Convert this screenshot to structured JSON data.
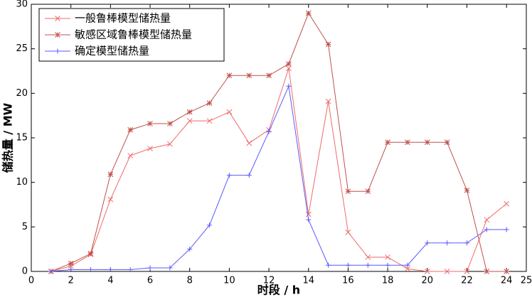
{
  "chart_data": {
    "type": "line",
    "x_label": "时段 / h",
    "y_label": "储热量 / MW",
    "x": [
      1,
      2,
      3,
      4,
      5,
      6,
      7,
      8,
      9,
      10,
      11,
      12,
      13,
      14,
      15,
      16,
      17,
      18,
      19,
      20,
      21,
      22,
      23,
      24
    ],
    "series": [
      {
        "name": "一般鲁棒模型储热量",
        "color": "#f06a6a",
        "marker": "x",
        "values": [
          0,
          0.6,
          1.9,
          8.1,
          13.0,
          13.8,
          14.3,
          16.9,
          16.9,
          17.9,
          14.4,
          15.9,
          22.8,
          6.4,
          19.1,
          4.4,
          1.6,
          1.6,
          0.3,
          0,
          0,
          0,
          5.8,
          7.6
        ]
      },
      {
        "name": "敏感区域鲁棒模型储热量",
        "color": "#c0504d",
        "marker": "star",
        "values": [
          0,
          0.9,
          2.0,
          10.9,
          15.9,
          16.6,
          16.6,
          17.9,
          18.9,
          22.0,
          22.0,
          22.0,
          23.3,
          29.0,
          25.5,
          9.0,
          9.0,
          14.5,
          14.5,
          14.5,
          14.5,
          9.1,
          0,
          0
        ]
      },
      {
        "name": "确定模型储热量",
        "color": "#5a5aff",
        "marker": "plus",
        "values": [
          0,
          0.2,
          0.2,
          0.2,
          0.2,
          0.4,
          0.4,
          2.5,
          5.2,
          10.8,
          10.8,
          15.7,
          20.8,
          5.8,
          0.7,
          0.7,
          0.7,
          0.7,
          0.7,
          3.2,
          3.2,
          3.2,
          4.7,
          4.7
        ]
      }
    ],
    "xlim": [
      0,
      25
    ],
    "xticks": [
      0,
      2,
      4,
      6,
      8,
      10,
      12,
      14,
      16,
      18,
      20,
      22,
      24,
      25
    ],
    "ylim": [
      0,
      30
    ],
    "yticks": [
      0,
      5,
      10,
      15,
      20,
      25,
      30
    ],
    "grid": false,
    "legend": "upper left"
  }
}
